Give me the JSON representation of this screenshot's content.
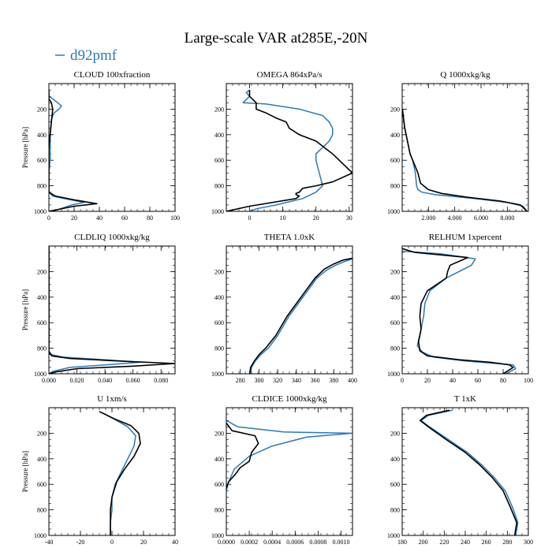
{
  "figure": {
    "title": "Large-scale VAR at285E,-20N",
    "legend": [
      {
        "name": "d92pmf",
        "color": "#2a7ab8"
      }
    ],
    "reference_line_color": "#000000"
  },
  "chart_data": [
    {
      "type": "line",
      "title": "CLOUD  100xfraction",
      "ylabel": "Pressure [hPa]",
      "xlim": [
        0,
        100
      ],
      "ylim": [
        1000,
        0
      ],
      "grid": false,
      "x_ticks": [
        0,
        20,
        40,
        60,
        80,
        100
      ],
      "x_tick_labels": [
        "0",
        "20",
        "40",
        "60",
        "80",
        "100"
      ],
      "y_ticks": [
        200,
        400,
        600,
        800,
        1000
      ],
      "series": [
        {
          "name": "d92pmf",
          "color": "#2a7ab8",
          "x": [
            0,
            0,
            3,
            7,
            10,
            8,
            4,
            2,
            1,
            1,
            0,
            0,
            0,
            3,
            12,
            28,
            18,
            6,
            0
          ],
          "y": [
            50,
            100,
            120,
            150,
            175,
            200,
            230,
            280,
            400,
            600,
            700,
            800,
            850,
            880,
            900,
            930,
            950,
            990,
            1000
          ]
        },
        {
          "name": "",
          "color": "#000000",
          "x": [
            0,
            0,
            2,
            3,
            2,
            1,
            0,
            0,
            0,
            5,
            20,
            38,
            20,
            5,
            0
          ],
          "y": [
            50,
            120,
            150,
            200,
            300,
            400,
            500,
            700,
            850,
            880,
            910,
            940,
            960,
            990,
            1000
          ]
        }
      ]
    },
    {
      "type": "line",
      "title": "OMEGA  864xPa/s",
      "ylabel": "",
      "xlim": [
        -7,
        31
      ],
      "ylim": [
        1000,
        0
      ],
      "grid": false,
      "x_ticks": [
        0,
        10,
        20,
        30
      ],
      "x_tick_labels": [
        "0",
        "10",
        "20",
        "30"
      ],
      "y_ticks": [
        200,
        400,
        600,
        800,
        1000
      ],
      "series": [
        {
          "name": "d92pmf",
          "color": "#2a7ab8",
          "x": [
            0,
            -1,
            0,
            -2,
            5,
            15,
            22,
            24,
            25,
            25,
            24,
            22,
            20,
            20,
            21,
            22,
            20,
            16,
            8,
            2,
            0
          ],
          "y": [
            50,
            70,
            100,
            150,
            160,
            200,
            250,
            300,
            350,
            400,
            450,
            500,
            550,
            600,
            700,
            800,
            850,
            900,
            950,
            980,
            1000
          ]
        },
        {
          "name": "",
          "color": "#000000",
          "x": [
            0,
            0,
            2,
            2,
            5,
            8,
            11,
            12,
            15,
            20,
            25,
            31,
            25,
            20,
            16,
            15,
            14,
            14,
            15,
            14,
            0,
            -7
          ],
          "y": [
            50,
            100,
            150,
            200,
            230,
            270,
            300,
            350,
            400,
            450,
            550,
            700,
            770,
            800,
            820,
            850,
            860,
            870,
            880,
            900,
            960,
            1000
          ]
        }
      ]
    },
    {
      "type": "line",
      "title": "Q  1000xkg/kg",
      "ylabel": "",
      "xlim": [
        0,
        9.6
      ],
      "ylim": [
        1000,
        0
      ],
      "grid": false,
      "x_ticks": [
        2,
        4,
        6,
        8
      ],
      "x_tick_labels": [
        "2.000",
        "4.000",
        "6.000",
        "8.000"
      ],
      "y_ticks": [
        200,
        400,
        600,
        800,
        1000
      ],
      "series": [
        {
          "name": "d92pmf",
          "color": "#2a7ab8",
          "x": [
            0.02,
            0.2,
            0.4,
            0.6,
            0.8,
            1.0,
            1.1,
            1.2,
            1.5,
            2.5,
            5.5,
            8,
            9.2,
            9.5
          ],
          "y": [
            200,
            350,
            450,
            550,
            600,
            700,
            800,
            830,
            850,
            870,
            900,
            930,
            960,
            1000
          ]
        },
        {
          "name": "",
          "color": "#000000",
          "x": [
            0.02,
            0.2,
            0.4,
            0.6,
            0.8,
            1.0,
            1.2,
            1.4,
            2.0,
            3.0,
            5.0,
            7.5,
            9.0,
            9.5
          ],
          "y": [
            200,
            350,
            450,
            550,
            600,
            650,
            700,
            780,
            830,
            860,
            890,
            920,
            950,
            1000
          ]
        }
      ]
    },
    {
      "type": "line",
      "title": "CLDLIQ  1000xkg/kg",
      "ylabel": "Pressure [hPa]",
      "xlim": [
        0,
        0.09
      ],
      "ylim": [
        1000,
        0
      ],
      "grid": false,
      "x_ticks": [
        0,
        0.02,
        0.04,
        0.06,
        0.08
      ],
      "x_tick_labels": [
        "0.000",
        "0.020",
        "0.040",
        "0.060",
        "0.080"
      ],
      "y_ticks": [
        200,
        400,
        600,
        800,
        1000
      ],
      "series": [
        {
          "name": "d92pmf",
          "color": "#2a7ab8",
          "x": [
            0,
            0,
            0.002,
            0.01,
            0.04,
            0.065,
            0.04,
            0.015,
            0.003,
            0
          ],
          "y": [
            0,
            820,
            850,
            870,
            890,
            910,
            930,
            950,
            980,
            1000
          ]
        },
        {
          "name": "",
          "color": "#000000",
          "x": [
            0,
            0,
            0.002,
            0.015,
            0.05,
            0.09,
            0.06,
            0.02,
            0.005,
            0
          ],
          "y": [
            0,
            830,
            860,
            880,
            900,
            920,
            940,
            960,
            985,
            1000
          ]
        }
      ]
    },
    {
      "type": "line",
      "title": "THETA  1.0xK",
      "ylabel": "",
      "xlim": [
        265,
        400
      ],
      "ylim": [
        1000,
        0
      ],
      "grid": false,
      "x_ticks": [
        280,
        300,
        320,
        340,
        360,
        380,
        400
      ],
      "x_tick_labels": [
        "280",
        "300",
        "320",
        "340",
        "360",
        "380",
        "400"
      ],
      "y_ticks": [
        200,
        400,
        600,
        800,
        1000
      ],
      "series": [
        {
          "name": "d92pmf",
          "color": "#2a7ab8",
          "x": [
            291,
            292,
            296,
            302,
            310,
            320,
            332,
            342,
            352,
            362,
            372,
            382,
            392,
            400
          ],
          "y": [
            1000,
            950,
            900,
            850,
            800,
            700,
            550,
            450,
            350,
            250,
            190,
            150,
            120,
            100
          ]
        },
        {
          "name": "",
          "color": "#000000",
          "x": [
            290,
            291,
            295,
            300,
            307,
            318,
            330,
            340,
            350,
            360,
            370,
            380,
            390,
            400
          ],
          "y": [
            1000,
            950,
            900,
            850,
            800,
            700,
            550,
            450,
            350,
            250,
            180,
            140,
            110,
            95
          ]
        }
      ]
    },
    {
      "type": "line",
      "title": "RELHUM  1xpercent",
      "ylabel": "",
      "xlim": [
        0,
        100
      ],
      "ylim": [
        1000,
        0
      ],
      "grid": false,
      "x_ticks": [
        0,
        20,
        40,
        60,
        80,
        100
      ],
      "x_tick_labels": [
        "0",
        "20",
        "40",
        "60",
        "80",
        "100"
      ],
      "y_ticks": [
        200,
        400,
        600,
        800,
        1000
      ],
      "series": [
        {
          "name": "d92pmf",
          "color": "#2a7ab8",
          "x": [
            0,
            30,
            58,
            55,
            45,
            35,
            22,
            18,
            17,
            15,
            12,
            16,
            25,
            50,
            75,
            88,
            90,
            82
          ],
          "y": [
            40,
            60,
            100,
            150,
            200,
            250,
            350,
            450,
            550,
            650,
            780,
            830,
            870,
            900,
            920,
            930,
            960,
            1000
          ]
        },
        {
          "name": "",
          "color": "#000000",
          "x": [
            0,
            10,
            52,
            38,
            36,
            35,
            20,
            15,
            14,
            15,
            13,
            14,
            20,
            45,
            70,
            85,
            88,
            80
          ],
          "y": [
            20,
            50,
            90,
            150,
            200,
            250,
            350,
            450,
            550,
            650,
            750,
            820,
            860,
            890,
            910,
            930,
            950,
            1000
          ]
        }
      ]
    },
    {
      "type": "line",
      "title": "U  1xm/s",
      "ylabel": "Pressure [hPa]",
      "xlim": [
        -40,
        40
      ],
      "ylim": [
        1000,
        0
      ],
      "grid": false,
      "x_ticks": [
        -40,
        -20,
        0,
        20,
        40
      ],
      "x_tick_labels": [
        "-40",
        "-20",
        "0",
        "20",
        "40"
      ],
      "y_ticks": [
        200,
        400,
        600,
        800,
        1000
      ],
      "series": [
        {
          "name": "d92pmf",
          "color": "#2a7ab8",
          "x": [
            -6,
            3,
            10,
            15,
            14,
            10,
            6,
            2,
            0,
            0,
            -1,
            -1
          ],
          "y": [
            40,
            100,
            150,
            220,
            300,
            400,
            500,
            600,
            700,
            800,
            900,
            1000
          ]
        },
        {
          "name": "",
          "color": "#000000",
          "x": [
            -8,
            2,
            12,
            17,
            18,
            14,
            8,
            3,
            0,
            -1,
            -1,
            -1
          ],
          "y": [
            30,
            90,
            140,
            200,
            280,
            380,
            480,
            580,
            700,
            800,
            900,
            1000
          ]
        }
      ]
    },
    {
      "type": "line",
      "title": "CLDICE  1000xkg/kg",
      "ylabel": "",
      "xlim": [
        0,
        0.0011
      ],
      "ylim": [
        1000,
        0
      ],
      "grid": false,
      "x_ticks": [
        0,
        0.0002,
        0.0004,
        0.0006,
        0.0008,
        0.001
      ],
      "x_tick_labels": [
        "0.0000",
        "0.0002",
        "0.0004",
        "0.0006",
        "0.0008",
        "0.0010"
      ],
      "y_ticks": [
        200,
        400,
        600,
        800,
        1000
      ],
      "series": [
        {
          "name": "d92pmf",
          "color": "#2a7ab8",
          "x": [
            0,
            0.0001,
            0.0005,
            0.0011,
            0.0007,
            0.0004,
            0.0002,
            7e-05,
            2e-05,
            0
          ],
          "y": [
            100,
            150,
            190,
            200,
            230,
            300,
            380,
            480,
            580,
            650
          ]
        },
        {
          "name": "",
          "color": "#000000",
          "x": [
            0,
            5e-05,
            0.00025,
            0.00028,
            0.00022,
            0.0002,
            0.00012,
            8e-05,
            2e-05,
            0
          ],
          "y": [
            120,
            180,
            220,
            280,
            350,
            420,
            470,
            520,
            580,
            630
          ]
        }
      ]
    },
    {
      "type": "line",
      "title": "T  1xK",
      "ylabel": "",
      "xlim": [
        180,
        300
      ],
      "ylim": [
        1000,
        0
      ],
      "grid": false,
      "x_ticks": [
        180,
        200,
        220,
        240,
        260,
        280,
        300
      ],
      "x_tick_labels": [
        "180",
        "200",
        "220",
        "240",
        "260",
        "280",
        "300"
      ],
      "y_ticks": [
        200,
        400,
        600,
        800,
        1000
      ],
      "series": [
        {
          "name": "d92pmf",
          "color": "#2a7ab8",
          "x": [
            228,
            205,
            198,
            206,
            224,
            242,
            256,
            268,
            278,
            285,
            290,
            288
          ],
          "y": [
            20,
            60,
            100,
            150,
            250,
            350,
            450,
            550,
            650,
            780,
            900,
            1000
          ]
        },
        {
          "name": "",
          "color": "#000000",
          "x": [
            225,
            203,
            197,
            205,
            222,
            240,
            254,
            266,
            276,
            283,
            289,
            287
          ],
          "y": [
            20,
            60,
            100,
            150,
            250,
            350,
            450,
            550,
            650,
            780,
            900,
            1000
          ]
        }
      ]
    }
  ]
}
